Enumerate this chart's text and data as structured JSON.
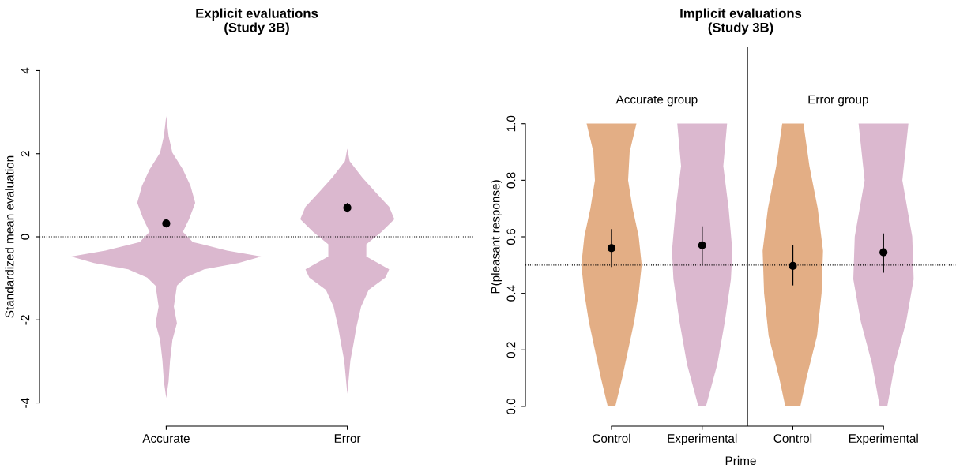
{
  "chart_data": [
    {
      "type": "scatter",
      "title": "Explicit evaluations\n(Study 3B)",
      "ylabel": "Standardized mean evaluation",
      "categories": [
        "Accurate",
        "Error"
      ],
      "ylim": [
        -4,
        4
      ],
      "yticks": [
        -4,
        -2,
        0,
        2,
        4
      ],
      "marker": "circle",
      "ref_lines": [
        {
          "axis": "y",
          "value": 0,
          "line_style": "dotted",
          "color": "#000000"
        }
      ],
      "series": [
        {
          "color": "#000000",
          "values": [
            0.32,
            0.7
          ],
          "errors": [
            [
              0.24,
              0.4
            ],
            [
              0.6,
              0.8
            ]
          ]
        }
      ]
    },
    {
      "type": "scatter",
      "title": "Implicit evaluations\n(Study 3B)",
      "ylabel": "P(pleasant response)",
      "xlabel": "Prime",
      "categories": [
        "Control",
        "Experimental",
        "Control",
        "Experimental"
      ],
      "ylim": [
        0,
        1
      ],
      "yticks": [
        {
          "value": 0,
          "label": "0.0"
        },
        0.2,
        0.4,
        0.6,
        0.8,
        {
          "value": 1,
          "label": "1.0"
        }
      ],
      "marker": "circle",
      "annotations": [
        "Accurate group",
        "Error group"
      ],
      "ref_lines": [
        {
          "axis": "y",
          "value": 0.5,
          "line_style": "dotted",
          "color": "#000000"
        }
      ],
      "series": [
        {
          "color": "#000000",
          "values": [
            0.56,
            0.57,
            0.497,
            0.545
          ],
          "errors": [
            [
              0.495,
              0.625
            ],
            [
              0.505,
              0.635
            ],
            [
              0.43,
              0.57
            ],
            [
              0.475,
              0.61
            ]
          ]
        }
      ]
    }
  ]
}
